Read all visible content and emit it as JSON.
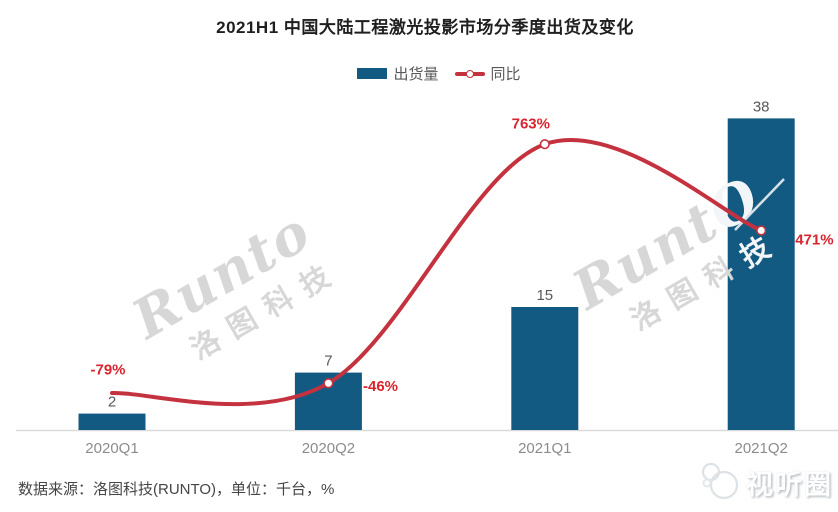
{
  "title": "2021H1 中国大陆工程激光投影市场分季度出货及变化",
  "legend": {
    "items": [
      {
        "label": "出货量",
        "type": "bar"
      },
      {
        "label": "同比",
        "type": "line"
      }
    ]
  },
  "chart_data": {
    "type": "bar",
    "subtype": "bar+line-combo",
    "categories": [
      "2020Q1",
      "2020Q2",
      "2021Q1",
      "2021Q2"
    ],
    "series": [
      {
        "name": "出货量",
        "type": "bar",
        "unit": "千台",
        "values": [
          2,
          7,
          15,
          38
        ]
      },
      {
        "name": "同比",
        "type": "line",
        "unit": "%",
        "values": [
          -79,
          -46,
          763,
          471
        ],
        "point_labels": [
          "-79%",
          "-46%",
          "763%",
          "471%"
        ]
      }
    ],
    "value_labels_shown": true,
    "grid": false,
    "axes_hidden": true,
    "legend_position": "top-center"
  },
  "colors": {
    "bar": "#135a82",
    "line": "#c5323f",
    "yoy_label": "#d9242f",
    "bar_label": "#595959",
    "category_label": "#8c8c8c",
    "axis_line": "#d9d9d9"
  },
  "watermark": {
    "latin": "Runto",
    "latin_head": "Runt",
    "latin_tail": "O",
    "cn": "洛图科技",
    "cn_head": "洛图科",
    "cn_tail": "技"
  },
  "footer": {
    "source": "数据来源：洛图科技(RUNTO)，单位：千台，%",
    "logo_text": "视听圈"
  }
}
